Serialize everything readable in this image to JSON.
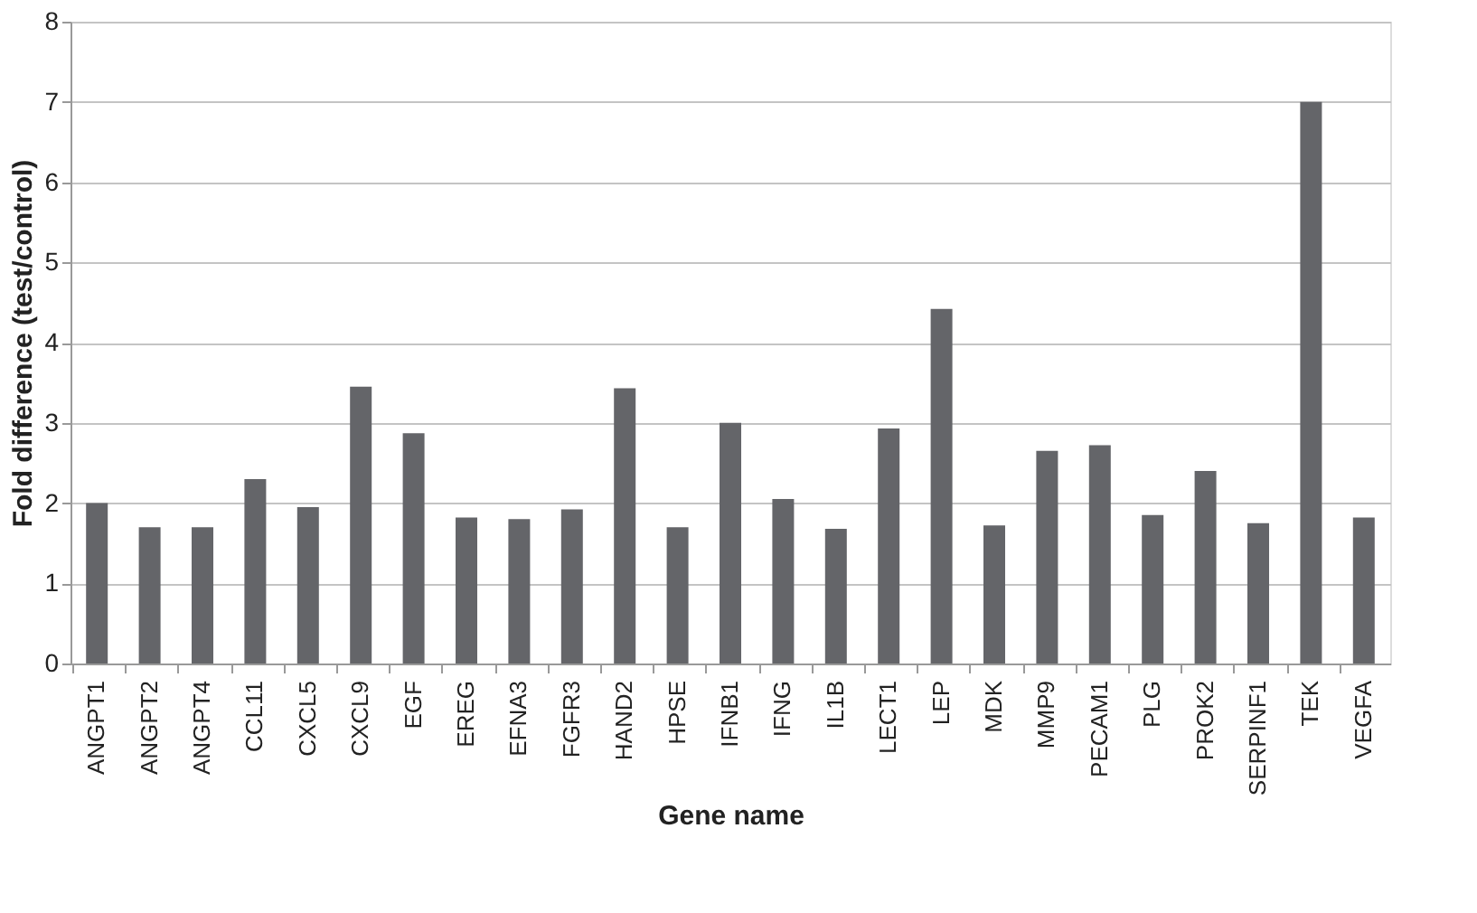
{
  "chart_data": {
    "type": "bar",
    "xlabel": "Gene name",
    "ylabel": "Fold difference (test/control)",
    "categories": [
      "ANGPT1",
      "ANGPT2",
      "ANGPT4",
      "CCL11",
      "CXCL5",
      "CXCL9",
      "EGF",
      "EREG",
      "EFNA3",
      "FGFR3",
      "HAND2",
      "HPSE",
      "IFNB1",
      "IFNG",
      "IL1B",
      "LECT1",
      "LEP",
      "MDK",
      "MMP9",
      "PECAM1",
      "PLG",
      "PROK2",
      "SERPINF1",
      "TEK",
      "VEGFA"
    ],
    "values": [
      2.0,
      1.7,
      1.7,
      2.3,
      1.95,
      3.45,
      2.87,
      1.82,
      1.8,
      1.92,
      3.43,
      1.7,
      3.0,
      2.05,
      1.68,
      2.93,
      4.42,
      1.72,
      2.65,
      2.72,
      1.85,
      2.4,
      1.75,
      7.0,
      1.82
    ],
    "color": "#646569",
    "ylim": [
      0,
      8
    ],
    "yticks": [
      0,
      1,
      2,
      3,
      4,
      5,
      6,
      7,
      8
    ],
    "grid": "y"
  }
}
